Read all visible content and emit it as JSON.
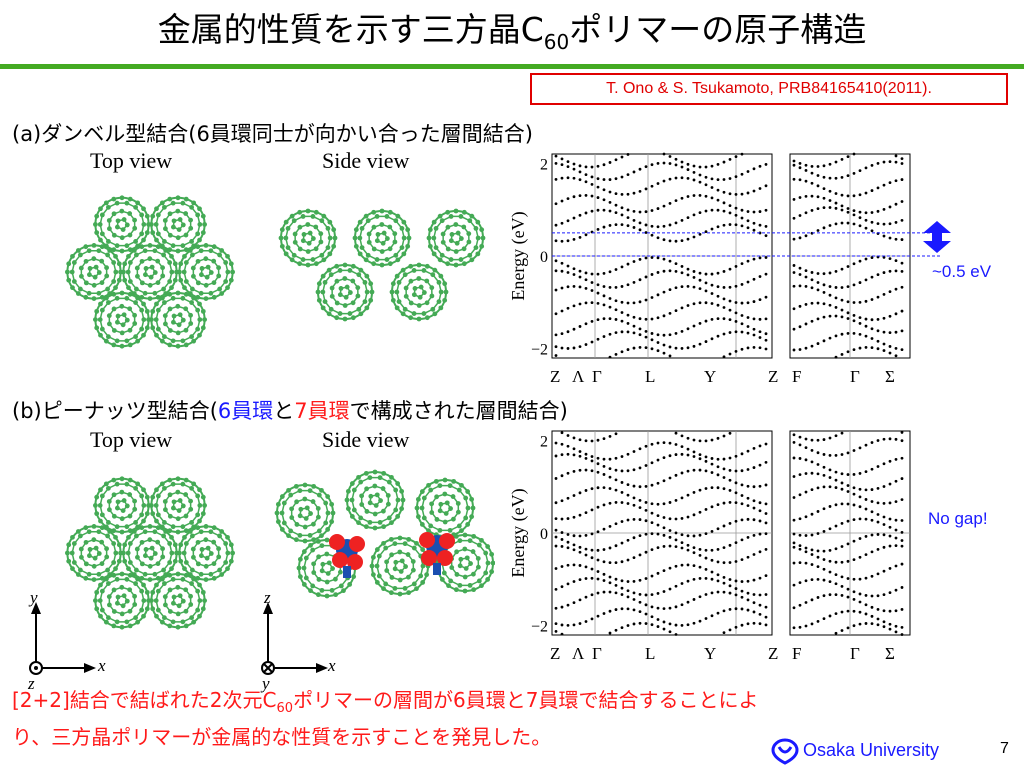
{
  "slide": {
    "title_main": "金属的性質を示す三方晶C",
    "title_sub": "60",
    "title_rest": "ポリマーの原子構造",
    "citation": "T. Ono & S. Tsukamoto, PRB84165410(2011).",
    "section_a": {
      "heading": "(a)ダンベル型結合(6員環同士が向かい合った層間結合)",
      "top_view": "Top view",
      "side_view": "Side view",
      "gap_note": "~0.5 eV"
    },
    "section_b": {
      "heading_pre": "(b)ピーナッツ型結合(",
      "six": "6員環",
      "and": "と",
      "seven": "7員環",
      "heading_post": "で構成された層間結合)",
      "top_view": "Top view",
      "side_view": "Side view",
      "note": "No gap!"
    },
    "band_plot": {
      "ylabel": "Energy (eV)",
      "yticks": [
        "2",
        "0",
        "−2"
      ],
      "kpoints_left": [
        "Z",
        "Λ",
        "Γ",
        "L",
        "Y",
        "Z"
      ],
      "kpoints_right": [
        "F",
        "Γ",
        "Σ"
      ]
    },
    "axes_a": {
      "up": "y",
      "right": "x",
      "out": "z"
    },
    "axes_b": {
      "up": "z",
      "right": "x",
      "out": "y"
    },
    "footer_line1_pre": "[2+2]結合で結ばれた2次元C",
    "footer_sub": "60",
    "footer_line1_post": "ポリマーの層間が6員環と7員環で結合することによ",
    "footer_line2": "り、三方晶ポリマーが金属的な性質を示すことを発見した。",
    "university": "Osaka University",
    "page": "7",
    "colors": {
      "accent_green": "#44aa22",
      "red": "#ff1a1a",
      "blue": "#1a1aff",
      "molecule": "#44aa55"
    }
  }
}
